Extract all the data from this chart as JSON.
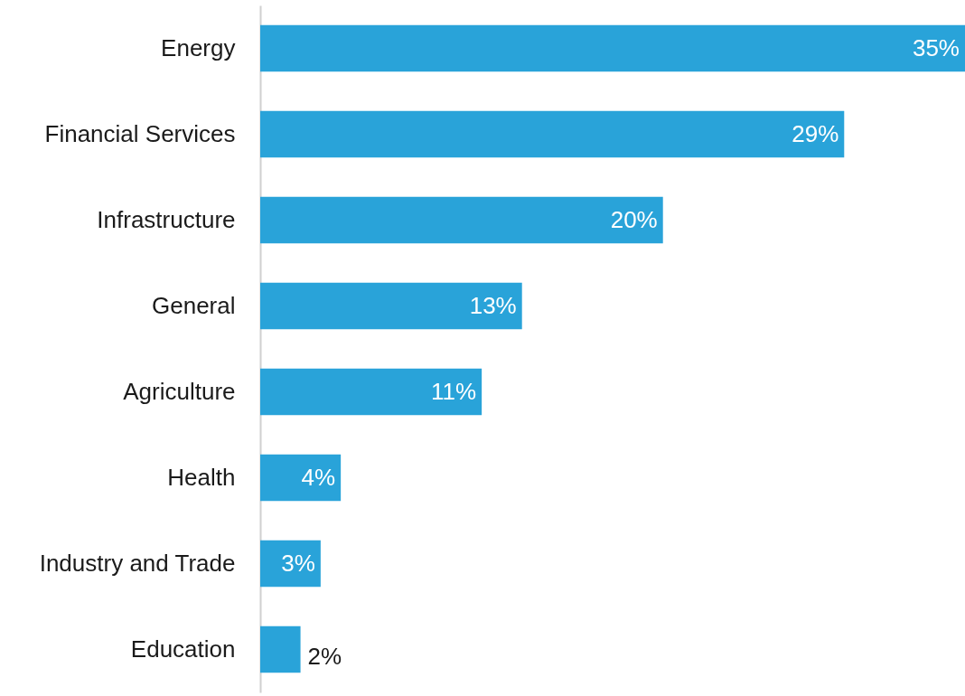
{
  "chart_data": {
    "type": "bar",
    "orientation": "horizontal",
    "categories": [
      "Energy",
      "Financial Services",
      "Infrastructure",
      "General",
      "Agriculture",
      "Health",
      "Industry and Trade",
      "Education"
    ],
    "values": [
      35,
      29,
      20,
      13,
      11,
      4,
      3,
      2
    ],
    "value_labels": [
      "35%",
      "29%",
      "20%",
      "13%",
      "11%",
      "4%",
      "3%",
      "2%"
    ],
    "color": "#29a3d9",
    "grid": false
  }
}
